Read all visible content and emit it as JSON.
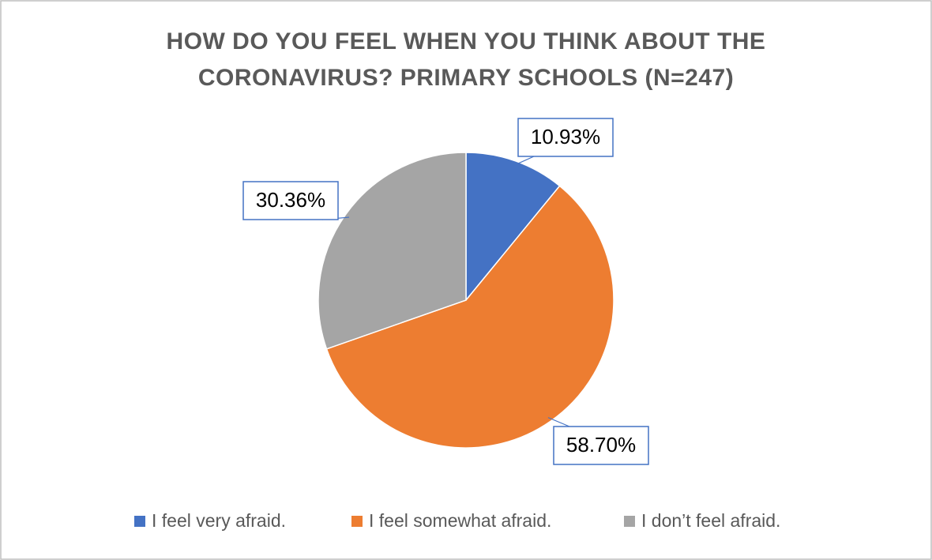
{
  "chart_data": {
    "type": "pie",
    "title": "HOW DO YOU FEEL WHEN YOU THINK ABOUT THE CORONAVIRUS? PRIMARY SCHOOLS (N=247)",
    "categories": [
      "I feel very afraid.",
      "I feel somewhat afraid.",
      "I don’t feel afraid."
    ],
    "values": [
      10.93,
      58.7,
      30.36
    ],
    "value_labels": [
      "10.93%",
      "58.70%",
      "30.36%"
    ],
    "colors": [
      "#4472c4",
      "#ed7d31",
      "#a5a5a5"
    ],
    "legend": "bottom"
  }
}
